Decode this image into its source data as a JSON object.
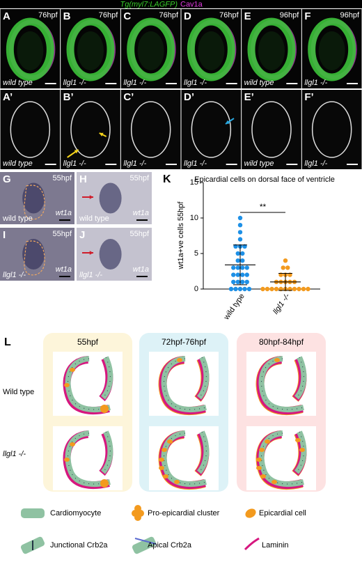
{
  "header": {
    "transgene": "Tg(myl7:LAGFP)",
    "stain": "Cav1a"
  },
  "panels_top": [
    {
      "label": "A",
      "time": "76hpf",
      "genotype": "wild type"
    },
    {
      "label": "B",
      "time": "76hpf",
      "genotype": "llgl1 -/-"
    },
    {
      "label": "C",
      "time": "76hpf",
      "genotype": "llgl1 -/-"
    },
    {
      "label": "D",
      "time": "76hpf",
      "genotype": "llgl1 -/-"
    },
    {
      "label": "E",
      "time": "96hpf",
      "genotype": "wild type"
    },
    {
      "label": "F",
      "time": "96hpf",
      "genotype": "llgl1 -/-"
    }
  ],
  "panels_prime": [
    {
      "label": "A’",
      "genotype": "wild type"
    },
    {
      "label": "B’",
      "genotype": "llgl1 -/-"
    },
    {
      "label": "C’",
      "genotype": "llgl1 -/-"
    },
    {
      "label": "D’",
      "genotype": "llgl1 -/-"
    },
    {
      "label": "E’",
      "genotype": "wild type"
    },
    {
      "label": "F’",
      "genotype": "llgl1 -/-"
    }
  ],
  "panels_ish": [
    {
      "label": "G",
      "time": "55hpf",
      "genotype": "wild type",
      "probe": "wt1a"
    },
    {
      "label": "H",
      "time": "55hpf",
      "genotype": "wild type",
      "probe": "wt1a"
    },
    {
      "label": "I",
      "time": "55hpf",
      "genotype": "llgl1 -/-",
      "probe": "wt1a"
    },
    {
      "label": "J",
      "time": "55hpf",
      "genotype": "llgl1 -/-",
      "probe": "wt1a"
    }
  ],
  "chart_data": {
    "type": "strip",
    "label": "K",
    "title": "Epicardial cells on dorsal face of ventricle",
    "y_label": "wt1a+ve cells 55hpf",
    "categories": [
      "wild type",
      "llgl1 -/-"
    ],
    "colors": [
      "#1e90e6",
      "#f39a1e"
    ],
    "values": [
      [
        10,
        9,
        8,
        7,
        6,
        6,
        6,
        5,
        5,
        4,
        4,
        3,
        3,
        3,
        3,
        2,
        2,
        2,
        2,
        1,
        1,
        1,
        1,
        0,
        0,
        0,
        0,
        0
      ],
      [
        4,
        3,
        3,
        2,
        2,
        2,
        1,
        1,
        1,
        1,
        1,
        0,
        0,
        0,
        0,
        0,
        0,
        0,
        0,
        0,
        0,
        0
      ]
    ],
    "mean": [
      3.4,
      1.0
    ],
    "sd": [
      2.8,
      1.2
    ],
    "ylim": [
      0,
      15
    ],
    "yticks": [
      0,
      5,
      10,
      15
    ],
    "significance": "**"
  },
  "schematic": {
    "label": "L",
    "columns": [
      "55hpf",
      "72hpf-76hpf",
      "80hpf-84hpf"
    ],
    "rows": [
      "Wild type",
      "llgl1 -/-"
    ],
    "legend": [
      "Cardiomyocyte",
      "Pro-epicardial cluster",
      "Epicardial cell",
      "Junctional Crb2a",
      "Apical Crb2a",
      "Laminin"
    ]
  }
}
